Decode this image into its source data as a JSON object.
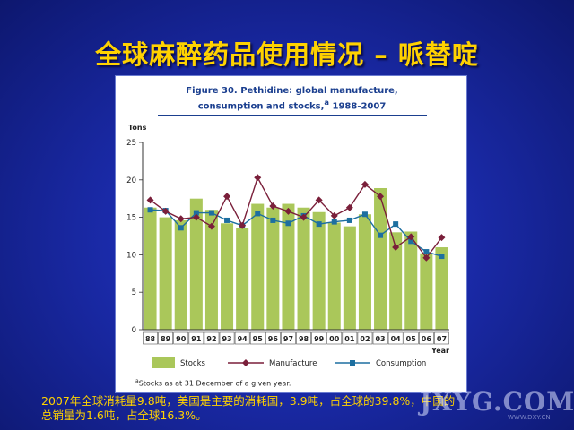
{
  "slide": {
    "title": "全球麻醉药品使用情况 – 哌替啶",
    "caption_line1": "2007年全球消耗量9.8吨，美国是主要的消耗国，3.9吨，占全球的39.8%，中国的",
    "caption_line2": "总销量为1.6吨，占全球16.3%。"
  },
  "watermark": {
    "text": "JXYG.COM",
    "small": "WWW.DXY.CN"
  },
  "figure": {
    "caption_line1": "Figure 30.   Pethidine: global manufacture,",
    "caption_line2": "consumption and stocks,",
    "caption_sup": "a",
    "caption_years": " 1988-2007",
    "footnote_sup": "a",
    "footnote": "Stocks as at 31 December of a given year."
  },
  "chart_data": {
    "type": "bar",
    "ylabel": "Tons",
    "xlabel": "Year",
    "ylim": [
      0,
      25
    ],
    "yticks": [
      0,
      5,
      10,
      15,
      20,
      25
    ],
    "grid": false,
    "legend_position": "bottom",
    "categories": [
      "88",
      "89",
      "90",
      "91",
      "92",
      "93",
      "94",
      "95",
      "96",
      "97",
      "98",
      "99",
      "00",
      "01",
      "02",
      "03",
      "04",
      "05",
      "06",
      "07"
    ],
    "series": [
      {
        "name": "Stocks",
        "kind": "bar",
        "color": "#aac75a",
        "values": [
          16.3,
          15.0,
          14.6,
          17.5,
          16.0,
          14.2,
          13.6,
          16.8,
          16.3,
          16.8,
          16.3,
          15.7,
          14.3,
          13.8,
          15.4,
          18.9,
          13.0,
          13.1,
          10.2,
          11.0
        ]
      },
      {
        "name": "Manufacture",
        "kind": "line",
        "color": "#7a1f3a",
        "values": [
          17.3,
          15.8,
          14.8,
          15.0,
          13.8,
          17.8,
          13.9,
          20.3,
          16.5,
          15.8,
          15.0,
          17.3,
          15.2,
          16.3,
          19.4,
          17.8,
          11.0,
          12.4,
          9.6,
          12.3
        ]
      },
      {
        "name": "Consumption",
        "kind": "line",
        "color": "#1d6fa0",
        "values": [
          16.0,
          15.9,
          13.6,
          15.6,
          15.6,
          14.6,
          13.9,
          15.5,
          14.6,
          14.2,
          15.2,
          14.1,
          14.4,
          14.6,
          15.4,
          12.6,
          14.1,
          11.8,
          10.4,
          9.8
        ]
      }
    ]
  }
}
